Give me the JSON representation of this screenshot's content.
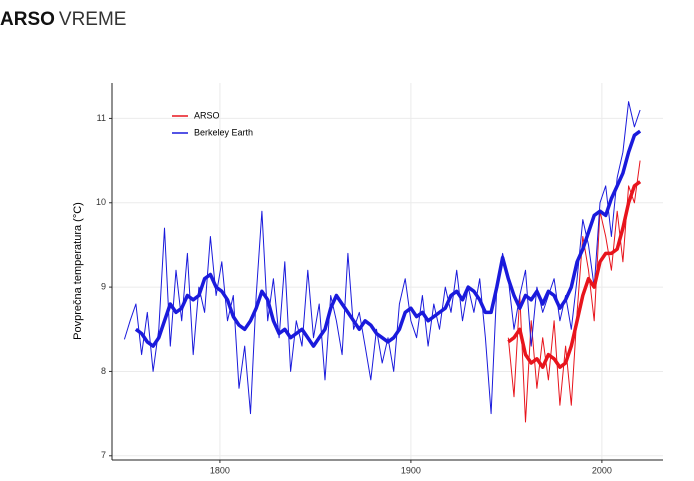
{
  "header": {
    "brand": "ARSO",
    "section": "VREME"
  },
  "chart_data": {
    "type": "line",
    "ylabel": "Povprečna temperatura (°C)",
    "x": [
      1750,
      1753,
      1756,
      1759,
      1762,
      1765,
      1768,
      1771,
      1774,
      1777,
      1780,
      1783,
      1786,
      1789,
      1792,
      1795,
      1798,
      1801,
      1804,
      1807,
      1810,
      1813,
      1816,
      1819,
      1822,
      1825,
      1828,
      1831,
      1834,
      1837,
      1840,
      1843,
      1846,
      1849,
      1852,
      1855,
      1858,
      1861,
      1864,
      1867,
      1870,
      1873,
      1876,
      1879,
      1882,
      1885,
      1888,
      1891,
      1894,
      1897,
      1900,
      1903,
      1906,
      1909,
      1912,
      1915,
      1918,
      1921,
      1924,
      1927,
      1930,
      1933,
      1936,
      1939,
      1942,
      1945,
      1948,
      1951,
      1954,
      1957,
      1960,
      1963,
      1966,
      1969,
      1972,
      1975,
      1978,
      1981,
      1984,
      1987,
      1990,
      1993,
      1996,
      1999,
      2002,
      2005,
      2008,
      2011,
      2014,
      2017,
      2020
    ],
    "series": [
      {
        "name": "ARSO",
        "color": "#e8141c",
        "values": [
          null,
          null,
          null,
          null,
          null,
          null,
          null,
          null,
          null,
          null,
          null,
          null,
          null,
          null,
          null,
          null,
          null,
          null,
          null,
          null,
          null,
          null,
          null,
          null,
          null,
          null,
          null,
          null,
          null,
          null,
          null,
          null,
          null,
          null,
          null,
          null,
          null,
          null,
          null,
          null,
          null,
          null,
          null,
          null,
          null,
          null,
          null,
          null,
          null,
          null,
          null,
          null,
          null,
          null,
          null,
          null,
          null,
          null,
          null,
          null,
          null,
          null,
          null,
          null,
          null,
          null,
          null,
          8.4,
          7.7,
          8.9,
          7.4,
          8.6,
          7.8,
          8.4,
          7.9,
          8.6,
          7.6,
          8.3,
          7.6,
          8.7,
          9.6,
          9.2,
          8.6,
          9.9,
          9.6,
          9.2,
          9.9,
          9.3,
          10.2,
          10.0,
          10.5
        ],
        "smooth": [
          null,
          null,
          null,
          null,
          null,
          null,
          null,
          null,
          null,
          null,
          null,
          null,
          null,
          null,
          null,
          null,
          null,
          null,
          null,
          null,
          null,
          null,
          null,
          null,
          null,
          null,
          null,
          null,
          null,
          null,
          null,
          null,
          null,
          null,
          null,
          null,
          null,
          null,
          null,
          null,
          null,
          null,
          null,
          null,
          null,
          null,
          null,
          null,
          null,
          null,
          null,
          null,
          null,
          null,
          null,
          null,
          null,
          null,
          null,
          null,
          null,
          null,
          null,
          null,
          null,
          null,
          null,
          8.35,
          8.4,
          8.5,
          8.2,
          8.1,
          8.15,
          8.05,
          8.2,
          8.15,
          8.05,
          8.1,
          8.3,
          8.6,
          8.9,
          9.1,
          9.0,
          9.3,
          9.4,
          9.4,
          9.45,
          9.7,
          10.0,
          10.2,
          10.25
        ]
      },
      {
        "name": "Berkeley Earth",
        "color": "#1a1adc",
        "values": [
          8.38,
          8.6,
          8.8,
          8.2,
          8.7,
          8.0,
          8.5,
          9.7,
          8.3,
          9.2,
          8.6,
          9.4,
          8.2,
          9.0,
          8.7,
          9.6,
          8.9,
          9.3,
          8.6,
          8.9,
          7.8,
          8.3,
          7.5,
          8.9,
          9.9,
          8.6,
          9.1,
          8.4,
          9.3,
          8.0,
          8.6,
          8.3,
          9.2,
          8.4,
          8.8,
          7.9,
          8.9,
          8.6,
          8.2,
          9.4,
          8.5,
          8.7,
          8.3,
          7.9,
          8.5,
          8.1,
          8.4,
          8.0,
          8.8,
          9.1,
          8.6,
          8.4,
          8.9,
          8.3,
          8.8,
          8.5,
          9.0,
          8.7,
          9.2,
          8.6,
          9.0,
          8.7,
          9.1,
          8.4,
          7.5,
          9.0,
          9.4,
          9.1,
          8.5,
          8.9,
          9.2,
          8.3,
          9.0,
          8.7,
          8.9,
          9.1,
          8.6,
          8.9,
          8.5,
          9.1,
          9.8,
          9.5,
          9.0,
          10.0,
          10.2,
          9.6,
          10.3,
          10.6,
          11.2,
          10.9,
          11.1
        ],
        "smooth": [
          null,
          null,
          8.5,
          8.45,
          8.35,
          8.3,
          8.4,
          8.6,
          8.8,
          8.7,
          8.75,
          8.9,
          8.85,
          8.9,
          9.1,
          9.15,
          9.0,
          8.95,
          8.85,
          8.65,
          8.55,
          8.5,
          8.6,
          8.75,
          8.95,
          8.85,
          8.6,
          8.45,
          8.5,
          8.4,
          8.45,
          8.5,
          8.4,
          8.3,
          8.4,
          8.5,
          8.75,
          8.9,
          8.8,
          8.7,
          8.6,
          8.5,
          8.6,
          8.55,
          8.45,
          8.4,
          8.35,
          8.4,
          8.5,
          8.7,
          8.75,
          8.65,
          8.7,
          8.6,
          8.65,
          8.7,
          8.75,
          8.9,
          8.95,
          8.85,
          9.0,
          8.95,
          8.85,
          8.7,
          8.7,
          9.0,
          9.35,
          9.1,
          8.9,
          8.75,
          8.9,
          8.85,
          8.95,
          8.8,
          8.95,
          8.9,
          8.75,
          8.85,
          9.0,
          9.3,
          9.45,
          9.65,
          9.85,
          9.9,
          9.85,
          10.05,
          10.2,
          10.35,
          10.6,
          10.8,
          10.85
        ]
      }
    ],
    "xlim": [
      1743.5,
      2032
    ],
    "xticks": [
      1800,
      1900,
      2000
    ],
    "ylim": [
      6.95,
      11.42
    ],
    "yticks": [
      7,
      8,
      9,
      10,
      11
    ],
    "grid": true,
    "legend": "top-left"
  }
}
